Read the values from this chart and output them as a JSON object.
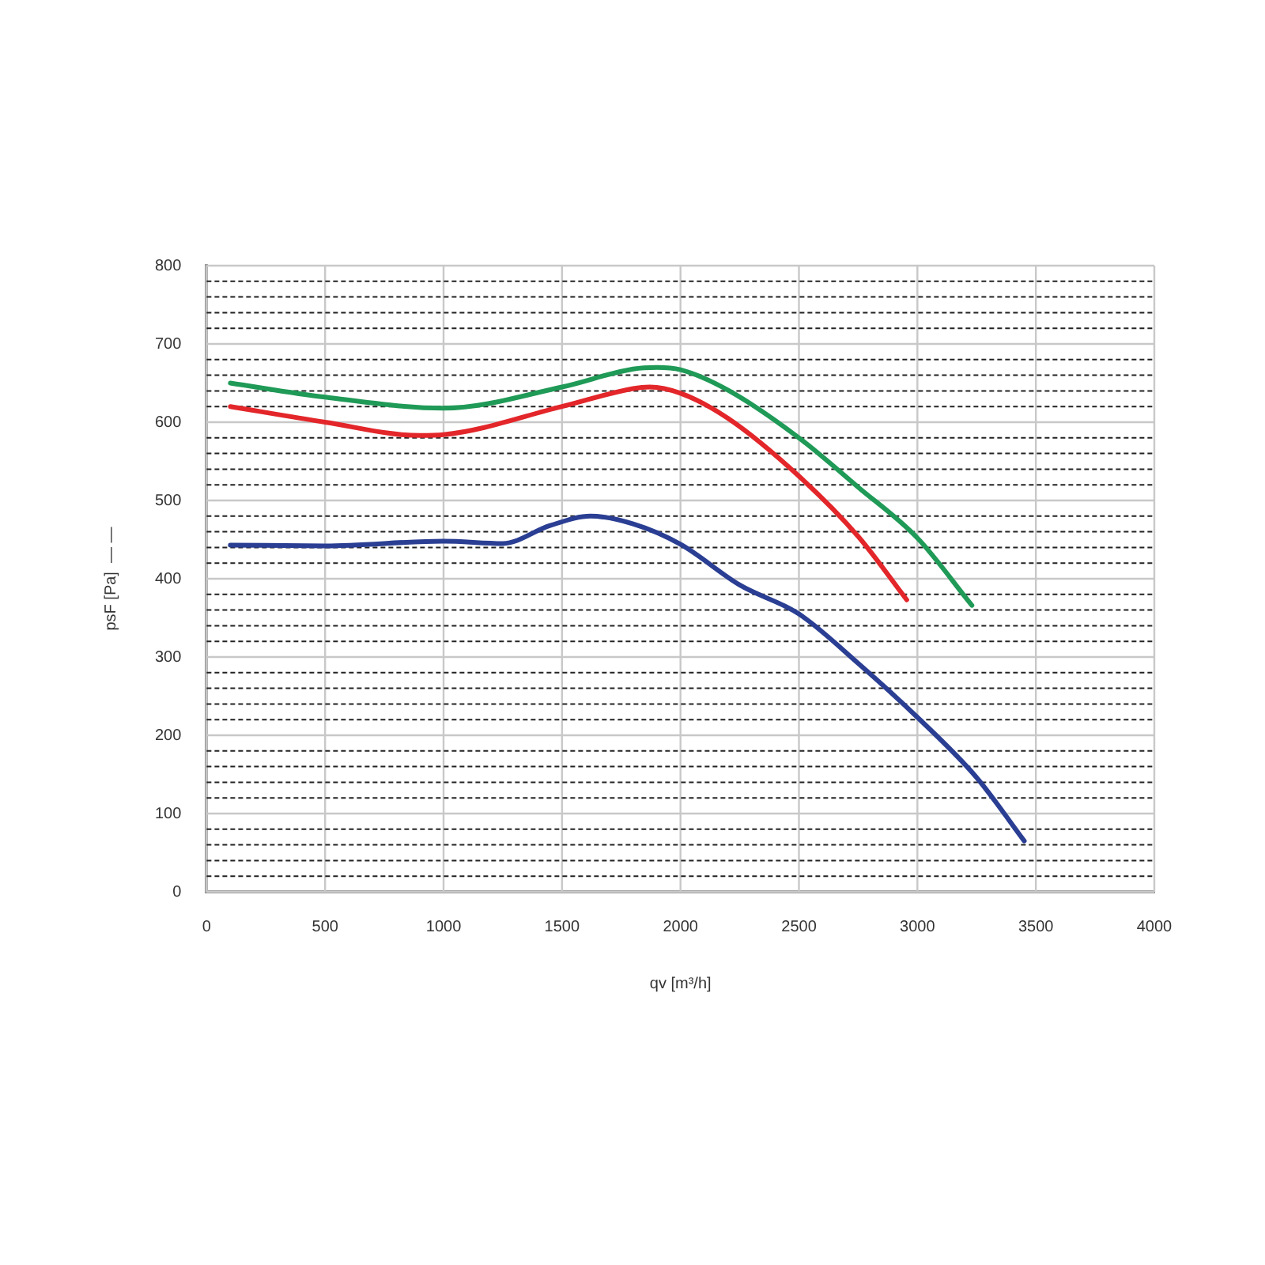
{
  "chart_data": {
    "type": "line",
    "xlabel": "qv [m³/h]",
    "ylabel": "psF [Pa]  — —",
    "xlim": [
      0,
      4000
    ],
    "xticks": [
      0,
      500,
      1000,
      1500,
      2000,
      2500,
      3000,
      3500,
      4000
    ],
    "ylim": [
      0,
      800
    ],
    "yticks": [
      0,
      {
        "value": 20,
        "label": null
      },
      {
        "value": 40,
        "label": null
      },
      {
        "value": 60,
        "label": null
      },
      {
        "value": 80,
        "label": null
      },
      100,
      {
        "value": 120,
        "label": null
      },
      {
        "value": 140,
        "label": null
      },
      {
        "value": 160,
        "label": null
      },
      {
        "value": 180,
        "label": null
      },
      200,
      {
        "value": 220,
        "label": null
      },
      {
        "value": 240,
        "label": null
      },
      {
        "value": 260,
        "label": null
      },
      {
        "value": 280,
        "label": null
      },
      300,
      {
        "value": 320,
        "label": null
      },
      {
        "value": 340,
        "label": null
      },
      {
        "value": 360,
        "label": null
      },
      {
        "value": 380,
        "label": null
      },
      400,
      {
        "value": 420,
        "label": null
      },
      {
        "value": 440,
        "label": null
      },
      {
        "value": 460,
        "label": null
      },
      {
        "value": 480,
        "label": null
      },
      500,
      {
        "value": 520,
        "label": null
      },
      {
        "value": 540,
        "label": null
      },
      {
        "value": 560,
        "label": null
      },
      {
        "value": 580,
        "label": null
      },
      600,
      {
        "value": 620,
        "label": null
      },
      {
        "value": 640,
        "label": null
      },
      {
        "value": 660,
        "label": null
      },
      {
        "value": 680,
        "label": null
      },
      700,
      {
        "value": 720,
        "label": null
      },
      {
        "value": 740,
        "label": null
      },
      {
        "value": 760,
        "label": null
      },
      {
        "value": 780,
        "label": null
      },
      800
    ],
    "grid": true,
    "legend": false,
    "marker": "none",
    "line_style": "solid",
    "series": [
      {
        "color": "#1f9a57",
        "x": [
          100,
          500,
          1000,
          1500,
          1800,
          1900,
          2000,
          2200,
          2500,
          2750,
          3000,
          3230
        ],
        "values": [
          650,
          632,
          618,
          645,
          668,
          670,
          667,
          641,
          580,
          517,
          452,
          366
        ]
      },
      {
        "color": "#e3262a",
        "x": [
          100,
          500,
          900,
          1000,
          1500,
          1800,
          1870,
          2000,
          2200,
          2500,
          2750,
          2955
        ],
        "values": [
          620,
          600,
          583,
          584,
          620,
          643,
          645,
          637,
          605,
          531,
          454,
          373
        ]
      },
      {
        "color": "#2a3e93",
        "x": [
          100,
          500,
          1000,
          1250,
          1450,
          1620,
          1800,
          2000,
          2250,
          2500,
          2750,
          3000,
          3250,
          3451
        ],
        "values": [
          443,
          442,
          448,
          445,
          468,
          480,
          470,
          444,
          392,
          355,
          292,
          223,
          146,
          65
        ]
      }
    ]
  }
}
